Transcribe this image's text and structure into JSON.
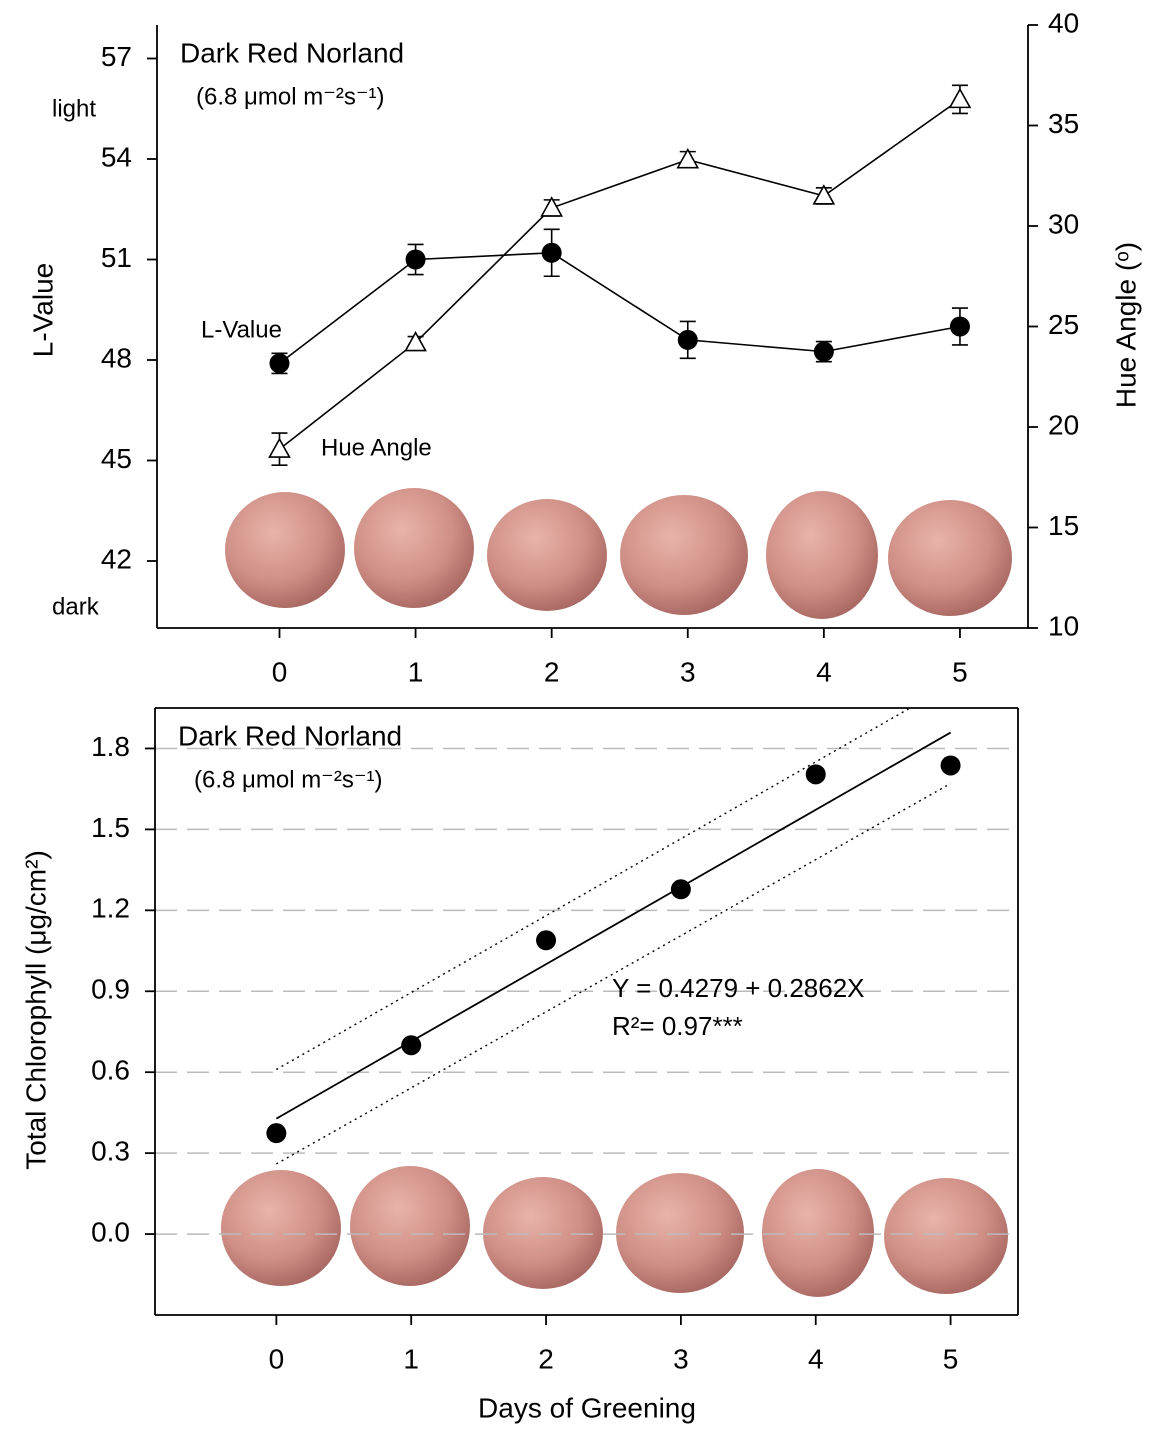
{
  "chart_data": [
    {
      "type": "line",
      "title": "Dark Red Norland",
      "subtitle": "(6.8 μmol m⁻²s⁻¹)",
      "y_label": "L-Value",
      "y2_label": "Hue Angle (ᵒ)",
      "annotations": [
        "light",
        "dark"
      ],
      "x": [
        0,
        1,
        2,
        3,
        4,
        5
      ],
      "xlim": [
        -0.9,
        5.5
      ],
      "xticks": [
        0,
        1,
        2,
        3,
        4,
        5
      ],
      "ylim": [
        40,
        58
      ],
      "yticks": [
        42,
        45,
        48,
        51,
        54,
        57
      ],
      "y2lim": [
        10,
        40
      ],
      "y2ticks": [
        10,
        15,
        20,
        25,
        30,
        35,
        40
      ],
      "series": [
        {
          "name": "L-Value",
          "color": "#000000",
          "marker": "circle",
          "values": [
            47.9,
            51.0,
            51.2,
            48.6,
            48.25,
            49.0
          ],
          "errors": [
            0.3,
            0.45,
            0.7,
            0.55,
            0.3,
            0.55
          ]
        },
        {
          "name": "Hue Angle",
          "color": "#000000",
          "marker": "triangle",
          "axis": "y2",
          "values": [
            18.9,
            24.2,
            30.9,
            33.3,
            31.5,
            36.3
          ],
          "errors": [
            0.8,
            0.3,
            0.4,
            0.4,
            0.4,
            0.7
          ]
        }
      ]
    },
    {
      "type": "scatter",
      "title": "Dark Red Norland",
      "subtitle": "(6.8 μmol m⁻²s⁻¹)",
      "x_label": "Days of Greening",
      "y_label": "Total Chlorophyll (μg/cm²)",
      "annotations": [
        "Y = 0.4279 + 0.2862X",
        "R²= 0.97***"
      ],
      "x": [
        0,
        1,
        2,
        3,
        4,
        5
      ],
      "values": [
        0.374,
        0.7,
        1.089,
        1.278,
        1.704,
        1.737
      ],
      "color": "#000000",
      "xlim": [
        -0.9,
        5.5
      ],
      "xticks": [
        0,
        1,
        2,
        3,
        4,
        5
      ],
      "ylim": [
        -0.3,
        1.95
      ],
      "yticks": [
        {
          "value": 0,
          "label": "0.0"
        },
        0.3,
        0.6,
        0.9,
        1.2,
        1.5,
        1.8
      ],
      "grid": true,
      "lines": [
        {
          "x": [
            0,
            5
          ],
          "values": [
            0.4279,
            1.8589
          ],
          "dash": "solid"
        },
        {
          "x": [
            0,
            4.7
          ],
          "values": [
            0.61,
            1.95
          ],
          "dash": "dotted"
        },
        {
          "x": [
            0,
            5
          ],
          "values": [
            0.26,
            1.67
          ],
          "dash": "dotted"
        }
      ]
    }
  ]
}
